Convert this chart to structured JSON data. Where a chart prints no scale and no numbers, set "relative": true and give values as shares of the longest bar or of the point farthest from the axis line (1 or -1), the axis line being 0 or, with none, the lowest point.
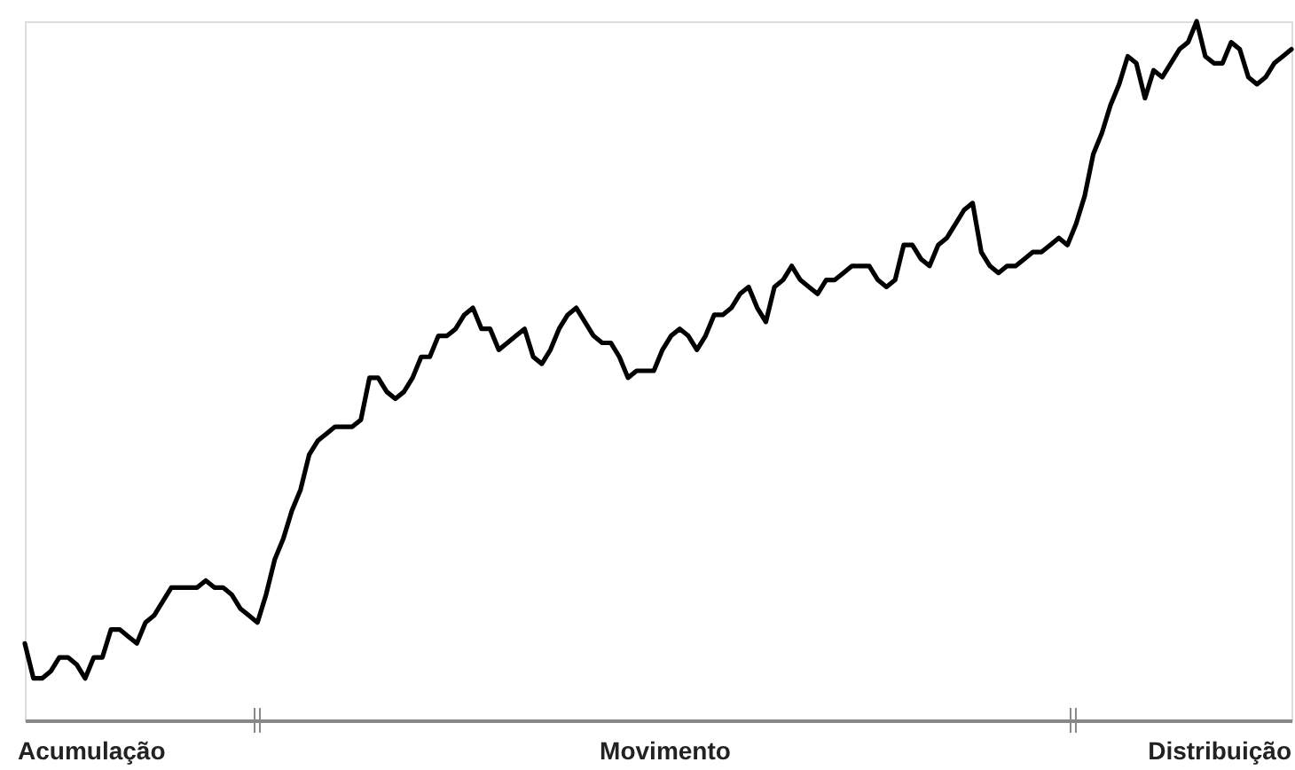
{
  "chart_data": {
    "type": "line",
    "relative": true,
    "color": "#000000",
    "annotations": [
      "Acumulação",
      "Movimento",
      "Distribuição"
    ],
    "categories": [
      null,
      null,
      null,
      null,
      null,
      null,
      null,
      null,
      null,
      null,
      null,
      null,
      null,
      null,
      null,
      null,
      null,
      null,
      null,
      null,
      null,
      null,
      null,
      null,
      null,
      null,
      null,
      null,
      null,
      null,
      null,
      null,
      null,
      null,
      null,
      null,
      null,
      null,
      null,
      null,
      null,
      null,
      null,
      null,
      null,
      null,
      null,
      null,
      null,
      null,
      null,
      null,
      null,
      null,
      null,
      null,
      null,
      null,
      null,
      null,
      null,
      null,
      null,
      null,
      null,
      null,
      null,
      null,
      null,
      null,
      null,
      null,
      null,
      null,
      null,
      null,
      null,
      null,
      null,
      null,
      null,
      null,
      null,
      null,
      null,
      null,
      null,
      null,
      null,
      null,
      null,
      null,
      null,
      null,
      null,
      null,
      null,
      null,
      null,
      null,
      null,
      null,
      null,
      null,
      null,
      null,
      null,
      null,
      null,
      null,
      null,
      null,
      null,
      null,
      null,
      null,
      null,
      null,
      null,
      null,
      null,
      null,
      null,
      null,
      null,
      null,
      null,
      null,
      null,
      null,
      null,
      null,
      null,
      null,
      null,
      null,
      null,
      null,
      null,
      null,
      null,
      null,
      null,
      null,
      null,
      null,
      null,
      null
    ],
    "values": [
      0.11,
      0.06,
      0.06,
      0.07,
      0.09,
      0.09,
      0.08,
      0.06,
      0.09,
      0.09,
      0.13,
      0.13,
      0.12,
      0.11,
      0.14,
      0.15,
      0.17,
      0.19,
      0.19,
      0.19,
      0.19,
      0.2,
      0.19,
      0.19,
      0.18,
      0.16,
      0.15,
      0.14,
      0.18,
      0.23,
      0.26,
      0.3,
      0.33,
      0.38,
      0.4,
      0.41,
      0.42,
      0.42,
      0.42,
      0.43,
      0.49,
      0.49,
      0.47,
      0.46,
      0.47,
      0.49,
      0.52,
      0.52,
      0.55,
      0.55,
      0.56,
      0.58,
      0.59,
      0.56,
      0.56,
      0.53,
      0.54,
      0.55,
      0.56,
      0.52,
      0.51,
      0.53,
      0.56,
      0.58,
      0.59,
      0.57,
      0.55,
      0.54,
      0.54,
      0.52,
      0.49,
      0.5,
      0.5,
      0.5,
      0.53,
      0.55,
      0.56,
      0.55,
      0.53,
      0.55,
      0.58,
      0.58,
      0.59,
      0.61,
      0.62,
      0.59,
      0.57,
      0.62,
      0.63,
      0.65,
      0.63,
      0.62,
      0.61,
      0.63,
      0.63,
      0.64,
      0.65,
      0.65,
      0.65,
      0.63,
      0.62,
      0.63,
      0.68,
      0.68,
      0.66,
      0.65,
      0.68,
      0.69,
      0.71,
      0.73,
      0.74,
      0.67,
      0.65,
      0.64,
      0.65,
      0.65,
      0.66,
      0.67,
      0.67,
      0.68,
      0.69,
      0.68,
      0.71,
      0.75,
      0.81,
      0.84,
      0.88,
      0.91,
      0.95,
      0.94,
      0.89,
      0.93,
      0.92,
      0.94,
      0.96,
      0.97,
      1,
      0.95,
      0.94,
      0.94,
      0.97,
      0.96,
      0.92,
      0.91,
      0.92,
      0.94,
      0.95,
      0.96
    ]
  }
}
